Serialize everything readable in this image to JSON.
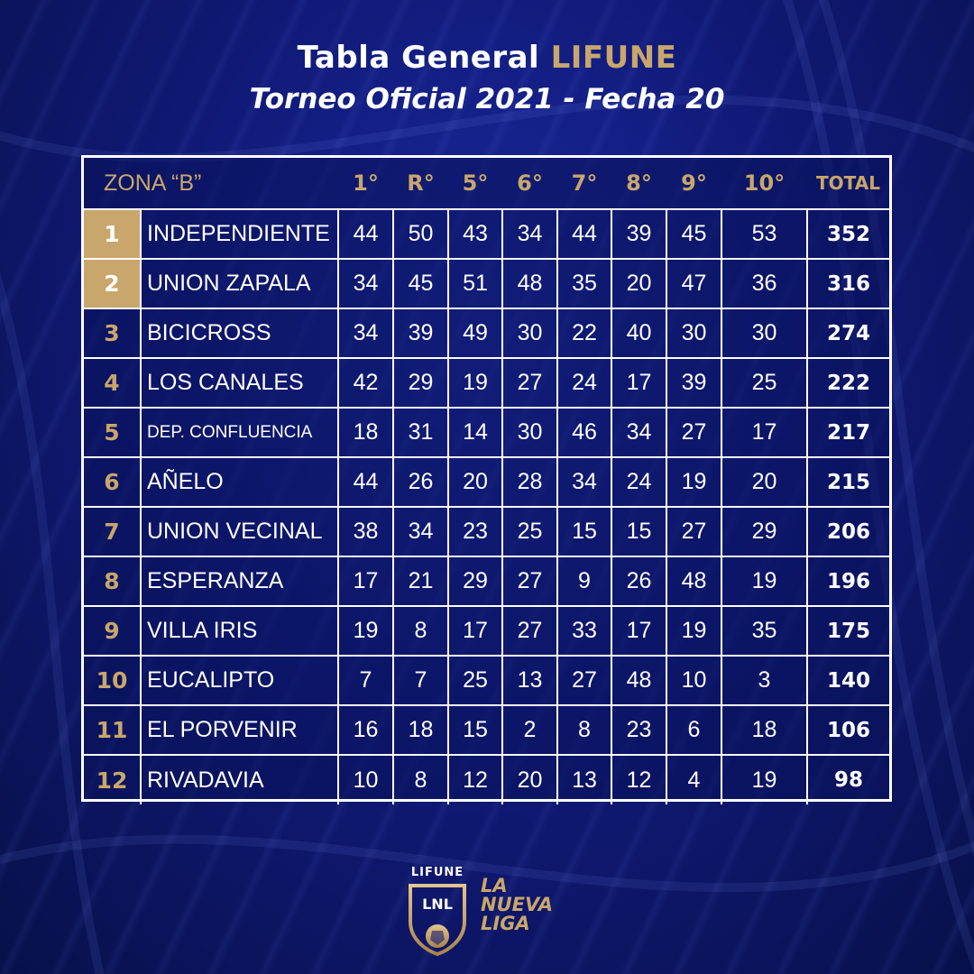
{
  "header": {
    "title_prefix": "Tabla General",
    "title_highlight": "LIFUNE",
    "subtitle": "Torneo Oficial 2021 - Fecha 20"
  },
  "table": {
    "zone_label": "ZONA “B”",
    "columns": [
      "1°",
      "R°",
      "5°",
      "6°",
      "7°",
      "8°",
      "9°",
      "10°"
    ],
    "total_label": "TOTAL",
    "rows": [
      {
        "pos": "1",
        "team": "INDEPENDIENTE",
        "scores": [
          "44",
          "50",
          "43",
          "34",
          "44",
          "39",
          "45",
          "53"
        ],
        "total": "352"
      },
      {
        "pos": "2",
        "team": "UNION ZAPALA",
        "scores": [
          "34",
          "45",
          "51",
          "48",
          "35",
          "20",
          "47",
          "36"
        ],
        "total": "316"
      },
      {
        "pos": "3",
        "team": "BICICROSS",
        "scores": [
          "34",
          "39",
          "49",
          "30",
          "22",
          "40",
          "30",
          "30"
        ],
        "total": "274"
      },
      {
        "pos": "4",
        "team": "LOS CANALES",
        "scores": [
          "42",
          "29",
          "19",
          "27",
          "24",
          "17",
          "39",
          "25"
        ],
        "total": "222"
      },
      {
        "pos": "5",
        "team": "DEP. CONFLUENCIA",
        "scores": [
          "18",
          "31",
          "14",
          "30",
          "46",
          "34",
          "27",
          "17"
        ],
        "total": "217"
      },
      {
        "pos": "6",
        "team": "AÑELO",
        "scores": [
          "44",
          "26",
          "20",
          "28",
          "34",
          "24",
          "19",
          "20"
        ],
        "total": "215"
      },
      {
        "pos": "7",
        "team": "UNION VECINAL",
        "scores": [
          "38",
          "34",
          "23",
          "25",
          "15",
          "15",
          "27",
          "29"
        ],
        "total": "206"
      },
      {
        "pos": "8",
        "team": "ESPERANZA",
        "scores": [
          "17",
          "21",
          "29",
          "27",
          "9",
          "26",
          "48",
          "19"
        ],
        "total": "196"
      },
      {
        "pos": "9",
        "team": "VILLA IRIS",
        "scores": [
          "19",
          "8",
          "17",
          "27",
          "33",
          "17",
          "19",
          "35"
        ],
        "total": "175"
      },
      {
        "pos": "10",
        "team": "EUCALIPTO",
        "scores": [
          "7",
          "7",
          "25",
          "13",
          "27",
          "48",
          "10",
          "3"
        ],
        "total": "140"
      },
      {
        "pos": "11",
        "team": "EL PORVENIR",
        "scores": [
          "16",
          "18",
          "15",
          "2",
          "8",
          "23",
          "6",
          "18"
        ],
        "total": "106"
      },
      {
        "pos": "12",
        "team": "RIVADAVIA",
        "scores": [
          "10",
          "8",
          "12",
          "20",
          "13",
          "12",
          "4",
          "19"
        ],
        "total": "98"
      }
    ]
  },
  "logo": {
    "top_text": "LIFUNE",
    "shield_text": "LNL",
    "line1": "LA",
    "line2": "NUEVA",
    "line3": "LIGA"
  },
  "colors": {
    "gold": "#c9a66b",
    "background": "#101a78",
    "text": "#ffffff"
  }
}
